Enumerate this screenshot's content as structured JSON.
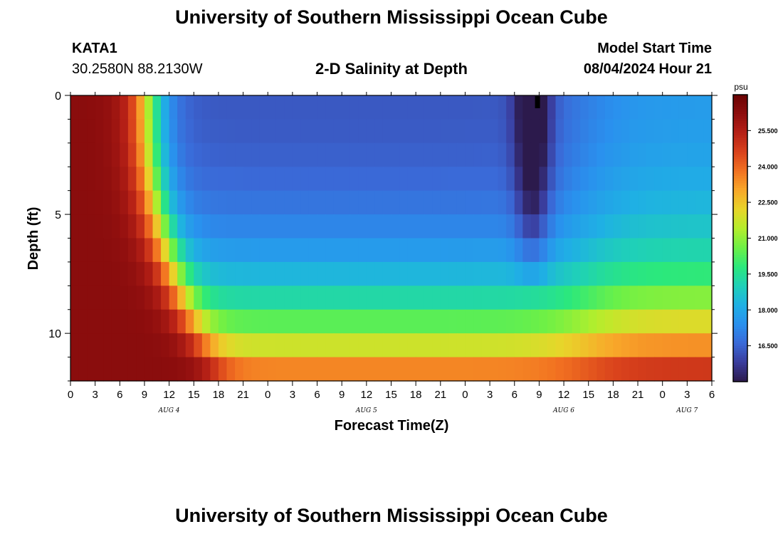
{
  "page": {
    "title": "University of Southern Mississippi Ocean Cube",
    "footer_title": "University of Southern Mississippi Ocean Cube",
    "station": "KATA1",
    "coords": "30.2580N  88.2130W",
    "subtitle": "2-D Salinity at Depth",
    "model_label": "Model Start Time",
    "model_time": "08/04/2024 Hour 21"
  },
  "chart_data": {
    "type": "heatmap",
    "title": "2-D Salinity at Depth",
    "xlabel": "Forecast Time(Z)",
    "ylabel": "Depth (ft)",
    "colorbar_label": "psu",
    "y_ticks": [
      0,
      5,
      10
    ],
    "y_range": [
      0,
      12
    ],
    "x_ticks": [
      "0",
      "3",
      "6",
      "9",
      "12",
      "15",
      "18",
      "21",
      "0",
      "3",
      "6",
      "9",
      "12",
      "15",
      "18",
      "21",
      "0",
      "3",
      "6",
      "9",
      "12",
      "15",
      "18",
      "21",
      "0",
      "3",
      "6"
    ],
    "x_range_hours": [
      0,
      78
    ],
    "date_labels": [
      {
        "label": "AUG 4",
        "hour": 12
      },
      {
        "label": "AUG 5",
        "hour": 36
      },
      {
        "label": "AUG 6",
        "hour": 60
      },
      {
        "label": "AUG 7",
        "hour": 75
      }
    ],
    "colorbar_ticks": [
      "25.500",
      "24.000",
      "22.500",
      "21.000",
      "19.500",
      "18.000",
      "16.500"
    ],
    "color_range": [
      15.0,
      27.0
    ],
    "colors": [
      "#2c1a4c",
      "#3a3c9c",
      "#3a6ad8",
      "#2a90ee",
      "#1fb0e4",
      "#1fd0b8",
      "#2be87c",
      "#6ef046",
      "#b4ee2c",
      "#e8d52a",
      "#f8a82a",
      "#f27221",
      "#d9421c",
      "#b52016",
      "#8e0e0e",
      "#6a0404"
    ],
    "depth_levels_ft": [
      0.5,
      1.5,
      2.5,
      3.5,
      4.5,
      5.5,
      6.5,
      7.5,
      8.5,
      9.5,
      10.5,
      11.5
    ],
    "marker": {
      "hour": 56.8,
      "depth_ft": 0.5
    }
  }
}
